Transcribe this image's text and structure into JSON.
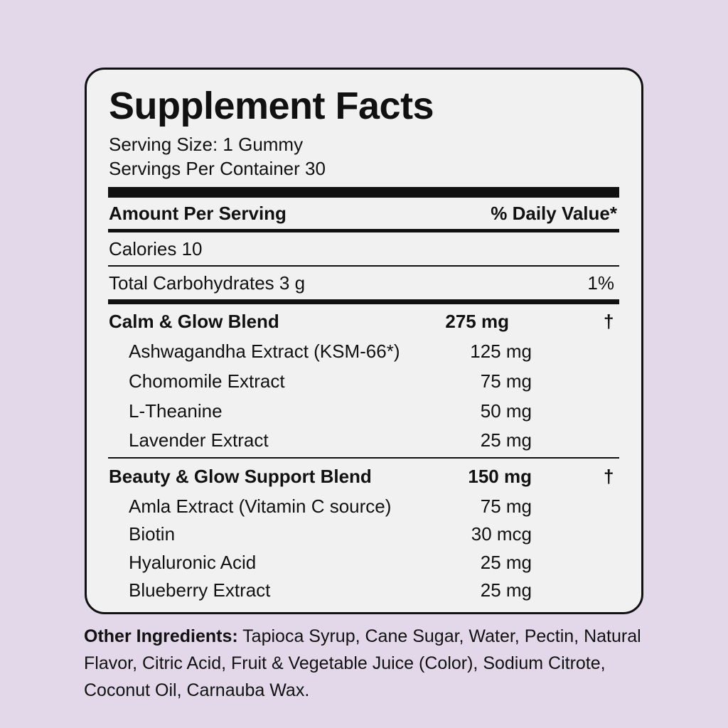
{
  "colors": {
    "background": "#e3d8ea",
    "panel": "#f1f1f1",
    "ink": "#111111"
  },
  "title": "Supplement Facts",
  "serving_size": "Serving Size: 1 Gummy",
  "servings_per_container": "Servings Per Container 30",
  "header": {
    "left": "Amount Per Serving",
    "right": "% Daily Value*"
  },
  "calories": "Calories 10",
  "carbs": {
    "label": "Total Carbohydrates 3 g",
    "dv": "1%"
  },
  "blends": [
    {
      "name": "Calm & Glow Blend",
      "amount": "275 mg",
      "dv": "†",
      "items": [
        {
          "name": "Ashwagandha Extract (KSM-66*)",
          "amount": "125 mg"
        },
        {
          "name": "Chomomile Extract",
          "amount": "75 mg"
        },
        {
          "name": "L-Theanine",
          "amount": "50 mg"
        },
        {
          "name": "Lavender Extract",
          "amount": "25 mg"
        }
      ]
    },
    {
      "name": "Beauty & Glow Support Blend",
      "amount": "150 mg",
      "dv": "†",
      "items": [
        {
          "name": "Amla Extract (Vitamin C source)",
          "amount": "75 mg"
        },
        {
          "name": "Biotin",
          "amount": "30 mcg"
        },
        {
          "name": "Hyaluronic Acid",
          "amount": "25 mg"
        },
        {
          "name": "Blueberry Extract",
          "amount": "25 mg"
        }
      ]
    }
  ],
  "other_ingredients": {
    "label": "Other Ingredients:",
    "text": " Tapioca Syrup, Cane Sugar, Water, Pectin, Natural Flavor, Citric Acid, Fruit & Vegetable Juice (Color), Sodium Citrote, Coconut Oil, Carnauba Wax."
  }
}
